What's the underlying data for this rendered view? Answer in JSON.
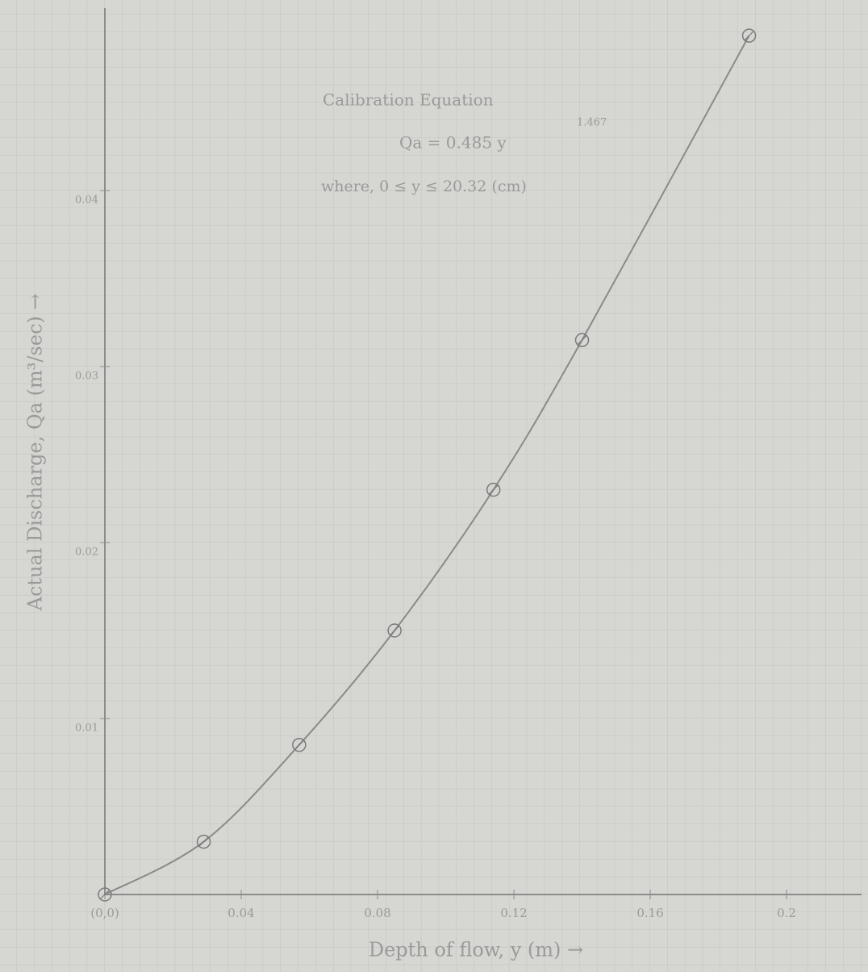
{
  "chart_data": {
    "type": "line",
    "x_label": "Depth of flow, y (m) →",
    "y_label": "Actual Discharge, Qa (m³/sec) →",
    "annotations": [
      "Calibration Equation",
      "Qa = 0.485 y",
      "1.467",
      "where, 0 ≤ y ≤ 20.32 (cm)"
    ],
    "x": [
      0,
      0.029,
      0.057,
      0.085,
      0.114,
      0.14,
      0.189
    ],
    "values": [
      0,
      0.003,
      0.0085,
      0.015,
      0.023,
      0.0315,
      0.0488
    ],
    "color": "#8a8a8a",
    "xlim": [
      0,
      0.222
    ],
    "ylim": [
      0,
      0.05
    ],
    "xticks": [
      {
        "value": 0,
        "label": "(0,0)"
      },
      0.04,
      0.08,
      0.12,
      0.16,
      0.2
    ],
    "yticks": [
      0.01,
      0.02,
      0.03,
      0.04
    ]
  }
}
